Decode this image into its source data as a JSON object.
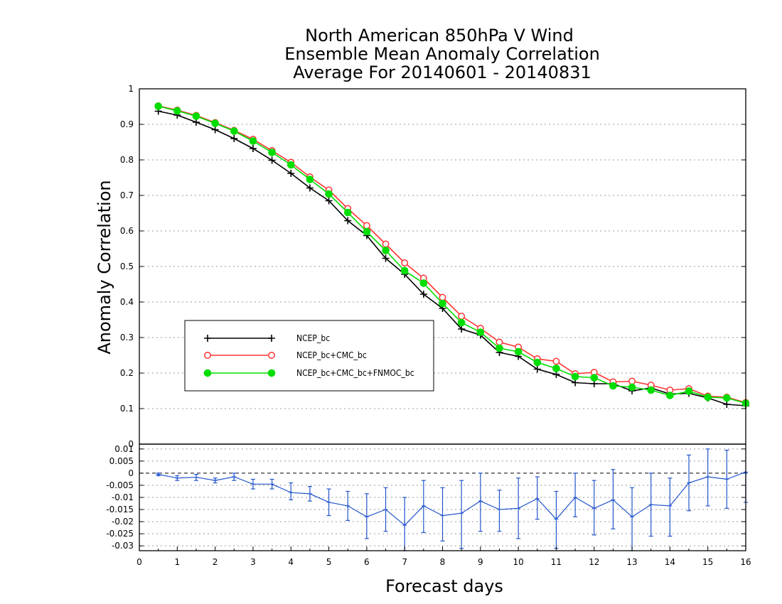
{
  "chart_data": [
    {
      "type": "line",
      "title_lines": [
        "North American 850hPa V Wind",
        "Ensemble Mean Anomaly Correlation",
        "Average For 20140601 - 20140831"
      ],
      "xlabel": "Forecast days",
      "ylabel": "Anomaly Correlation",
      "xlim": [
        0,
        16
      ],
      "ylim": [
        0,
        1
      ],
      "xticks": [
        "0",
        "1",
        "2",
        "3",
        "4",
        "5",
        "6",
        "7",
        "8",
        "9",
        "10",
        "11",
        "12",
        "13",
        "14",
        "15",
        "16"
      ],
      "yticks": [
        "0",
        "0.1",
        "0.2",
        "0.3",
        "0.4",
        "0.5",
        "0.6",
        "0.7",
        "0.8",
        "0.9",
        "1"
      ],
      "grid": true,
      "legend_position": "center-left",
      "x": [
        0.5,
        1,
        1.5,
        2,
        2.5,
        3,
        3.5,
        4,
        4.5,
        5,
        5.5,
        6,
        6.5,
        7,
        7.5,
        8,
        8.5,
        9,
        9.5,
        10,
        10.5,
        11,
        11.5,
        12,
        12.5,
        13,
        13.5,
        14,
        14.5,
        15,
        15.5,
        16
      ],
      "series": [
        {
          "name": "NCEP_bc",
          "color": "#000000",
          "marker": "plus",
          "values": [
            0.937,
            0.926,
            0.906,
            0.885,
            0.86,
            0.832,
            0.799,
            0.762,
            0.721,
            0.685,
            0.629,
            0.587,
            0.523,
            0.478,
            0.422,
            0.382,
            0.324,
            0.307,
            0.258,
            0.247,
            0.211,
            0.196,
            0.173,
            0.17,
            0.17,
            0.15,
            0.158,
            0.141,
            0.143,
            0.13,
            0.112,
            0.108
          ]
        },
        {
          "name": "NCEP_bc+CMC_bc",
          "color": "#ff3333",
          "marker": "open-circle",
          "values": [
            0.952,
            0.94,
            0.925,
            0.905,
            0.883,
            0.858,
            0.826,
            0.793,
            0.752,
            0.715,
            0.663,
            0.615,
            0.563,
            0.51,
            0.467,
            0.413,
            0.36,
            0.326,
            0.287,
            0.273,
            0.24,
            0.233,
            0.198,
            0.202,
            0.175,
            0.177,
            0.166,
            0.152,
            0.156,
            0.135,
            0.132,
            0.117
          ]
        },
        {
          "name": "NCEP_bc+CMC_bc+FNMOC_bc",
          "color": "#00dd00",
          "marker": "filled-circle",
          "values": [
            0.951,
            0.938,
            0.923,
            0.903,
            0.881,
            0.853,
            0.821,
            0.786,
            0.745,
            0.704,
            0.652,
            0.598,
            0.545,
            0.488,
            0.453,
            0.396,
            0.342,
            0.315,
            0.27,
            0.26,
            0.23,
            0.213,
            0.19,
            0.187,
            0.164,
            0.16,
            0.152,
            0.137,
            0.149,
            0.132,
            0.13,
            0.115
          ]
        }
      ]
    },
    {
      "type": "line",
      "xlim": [
        0,
        16
      ],
      "ylim": [
        -0.032,
        0.012
      ],
      "yticks": [
        "0.01",
        "0.005",
        "0",
        "-0.005",
        "-0.01",
        "-0.015",
        "-0.02",
        "-0.025",
        "-0.03"
      ],
      "grid": true,
      "x": [
        0.5,
        1,
        1.5,
        2,
        2.5,
        3,
        3.5,
        4,
        4.5,
        5,
        5.5,
        6,
        6.5,
        7,
        7.5,
        8,
        8.5,
        9,
        9.5,
        10,
        10.5,
        11,
        11.5,
        12,
        12.5,
        13,
        13.5,
        14,
        14.5,
        15,
        15.5,
        16
      ],
      "series": [
        {
          "name": "",
          "color": "#2255cc",
          "values": [
            -0.0005,
            -0.002,
            -0.0017,
            -0.003,
            -0.0015,
            -0.0045,
            -0.0045,
            -0.008,
            -0.0085,
            -0.012,
            -0.0135,
            -0.018,
            -0.015,
            -0.0215,
            -0.0135,
            -0.0175,
            -0.0165,
            -0.0115,
            -0.015,
            -0.0145,
            -0.0105,
            -0.019,
            -0.01,
            -0.0145,
            -0.011,
            -0.018,
            -0.013,
            -0.0135,
            -0.004,
            -0.0015,
            -0.0025,
            0.0005
          ],
          "err_low": [
            -0.001,
            -0.003,
            -0.003,
            -0.004,
            -0.003,
            -0.0065,
            -0.0065,
            -0.011,
            -0.0115,
            -0.0175,
            -0.0195,
            -0.027,
            -0.024,
            -0.032,
            -0.0245,
            -0.028,
            -0.031,
            -0.024,
            -0.024,
            -0.027,
            -0.019,
            -0.031,
            -0.018,
            -0.0255,
            -0.023,
            -0.032,
            -0.026,
            -0.026,
            -0.0155,
            -0.0135,
            -0.0145,
            -0.012
          ],
          "err_high": [
            0.0,
            -0.001,
            -0.0005,
            -0.002,
            0.0,
            -0.0025,
            -0.0025,
            -0.004,
            -0.0055,
            -0.0065,
            -0.0075,
            -0.0085,
            -0.006,
            -0.01,
            -0.003,
            -0.006,
            -0.003,
            0.0,
            -0.007,
            -0.002,
            -0.0015,
            -0.0075,
            0.0,
            -0.003,
            0.0015,
            -0.006,
            0.0,
            -0.002,
            0.0075,
            0.01,
            0.0095,
            0.0
          ]
        }
      ]
    }
  ]
}
